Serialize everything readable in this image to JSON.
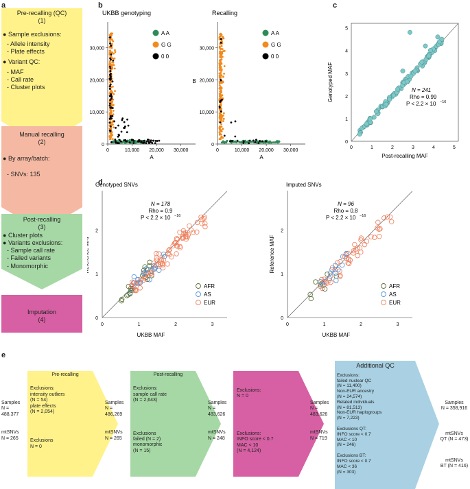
{
  "panel_letters": {
    "a": "a",
    "b": "b",
    "c": "c",
    "d": "d",
    "e": "e"
  },
  "panel_a": {
    "box1": {
      "title": "Pre-recalling (QC)",
      "num": "(1)",
      "sample_head": "Sample exclusions:",
      "sample_items": [
        "- Allele intensity",
        "- Plate effects"
      ],
      "variant_head": "Variant QC:",
      "variant_items": [
        "- MAF",
        "- Call rate",
        "- Cluster plots"
      ],
      "color": "#fff28a"
    },
    "box2": {
      "title": "Manual recalling",
      "num": "(2)",
      "head": "By array/batch:",
      "items": [
        "- SNVs: 135"
      ],
      "color": "#f5b9a3"
    },
    "box3": {
      "title": "Post-recalling",
      "num": "(3)",
      "head1": "Cluster plots",
      "head2": "Variants exclusions:",
      "items": [
        "- Sample call rate",
        "- Failed variants",
        "- Monomorphic"
      ],
      "color": "#a6d8a5"
    },
    "box4": {
      "title": "Imputation",
      "num": "(4)",
      "color": "#d660a3"
    }
  },
  "panel_b": {
    "titles": [
      "UKBB genotyping",
      "Recalling"
    ],
    "legend": [
      "A A",
      "G G",
      "0 0"
    ],
    "colors": {
      "AA": "#2e8b57",
      "GG": "#f28a1c",
      "00": "#000000"
    },
    "xlabel": "A",
    "ylabel": "B",
    "xticks": [
      "0",
      "10,000",
      "20,000",
      "30,000"
    ],
    "yticks": [
      "0",
      "10,000",
      "20,000",
      "30,000"
    ]
  },
  "panel_c": {
    "xlabel": "Post-recalling  MAF",
    "ylabel": "Genotyped MAF",
    "xticks": [
      "0",
      "1",
      "2",
      "3",
      "4",
      "5"
    ],
    "yticks": [
      "0",
      "1",
      "2",
      "3",
      "4",
      "5"
    ],
    "stat_n": "N = 241",
    "stat_rho": "Rho = 0.99",
    "stat_p": "P < 2.2 × 10",
    "stat_p_exp": "−16",
    "color": "#7ec8c8"
  },
  "panel_d": {
    "titles": [
      "Genotyped SNVs",
      "Imputed SNVs"
    ],
    "xlabel": "UKBB MAF",
    "ylabel": "Reference MAF",
    "xticks": [
      "0",
      "1",
      "2",
      "3"
    ],
    "yticks": [
      "0",
      "1",
      "2"
    ],
    "legend": [
      "AFR",
      "AS",
      "EUR"
    ],
    "colors": {
      "AFR": "#556b2f",
      "AS": "#4a90d9",
      "EUR": "#f07e5a"
    },
    "stats": [
      {
        "n": "N = 178",
        "rho": "Rho = 0.9",
        "p": "P < 2.2 × 10",
        "exp": "−16"
      },
      {
        "n": "N = 96",
        "rho": "Rho = 0.8",
        "p": "P < 2.2 × 10",
        "exp": "−16"
      }
    ]
  },
  "panel_e": {
    "start": {
      "samples_label": "Samples",
      "samples_n": "N = 488,377",
      "mt_label": "mtSNVs",
      "mt_n": "N = 265"
    },
    "pre": {
      "title": "Pre-recalling",
      "excl_head": "Exclusions:",
      "excl_lines": [
        "intensity outliers",
        "(N = 54)",
        "plate effects",
        "(N = 2,054)"
      ],
      "excl2_head": "Exclusions",
      "excl2_n": "N = 0",
      "color": "#fff28a"
    },
    "after_pre": {
      "samples_label": "Samples",
      "samples_n": "N = 486,269",
      "mt_label": "mtSNVs",
      "mt_n": "N = 265"
    },
    "post": {
      "title": "Post-recalling",
      "excl_head": "Exclusions:",
      "excl_lines": [
        "sample call rate",
        "(N = 2,643)"
      ],
      "excl2_head": "Exclusions",
      "excl2_lines": [
        "failed (N = 2)",
        "monomorphic",
        "(N = 15)"
      ],
      "color": "#a6d8a5"
    },
    "after_post": {
      "samples_label": "Samples",
      "samples_n": "N = 483,626",
      "mt_label": "mtSNVs",
      "mt_n": "N = 248"
    },
    "imp": {
      "excl_head": "Exclusions:",
      "excl_n": "N = 0",
      "excl2_head": "Exclusions:",
      "excl2_lines": [
        "INFO score < 0.7",
        "MAC < 10",
        "(N = 4,124)"
      ],
      "color": "#d660a3"
    },
    "after_imp": {
      "samples_label": "Samples",
      "samples_n": "N = 483,626",
      "mt_label": "mtSNVs",
      "mt_n": "N = 719"
    },
    "qc": {
      "title": "Additional QC",
      "excl_head": "Exclusions:",
      "excl_lines": [
        "failed nuclear QC",
        "(N = 11,400)",
        "Non-EUR ancestry",
        "(N = 24,574)",
        "Related individuals",
        "(N = 81,513)",
        "Non-EUR haplogroups",
        "(N = 7,223)"
      ],
      "qt_head": "Exclusions QT:",
      "qt_lines": [
        "INFO score < 0.7",
        "MAC < 10",
        "(N = 246)"
      ],
      "bt_head": "Exclusions BT:",
      "bt_lines": [
        "INFO score < 0.7",
        "MAC < 36",
        "(N = 303)"
      ],
      "color": "#a9d1e3"
    },
    "final": {
      "samples_label": "Samples",
      "samples_n": "N = 358,916",
      "mt_label": "mtSNVs",
      "qt": "QT (N = 473)",
      "mt_label2": "mtSNVs",
      "bt": "BT (N = 416)"
    }
  }
}
